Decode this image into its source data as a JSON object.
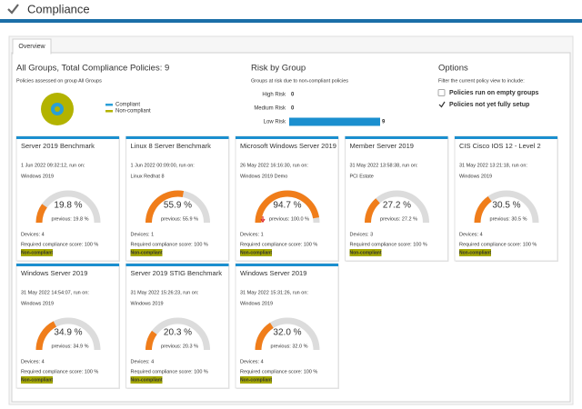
{
  "header": {
    "title": "Compliance"
  },
  "tab": "Overview",
  "gauge_range": [
    0,
    100
  ],
  "summary": {
    "title": "All Groups, Total Compliance Policies: 9",
    "subtitle": "Policies assessed on group All Groups",
    "legend": [
      {
        "name": "Compliant",
        "color": "#2a9fd8"
      },
      {
        "name": "Non-compliant",
        "color": "#b3b300"
      }
    ]
  },
  "risk": {
    "title": "Risk by Group",
    "subtitle": "Groups at risk due to non-compliant policies",
    "color": "#1b8fcf",
    "rows": [
      {
        "label": "High Risk",
        "value": 0
      },
      {
        "label": "Medium Risk",
        "value": 0
      },
      {
        "label": "Low Risk",
        "value": 9
      }
    ]
  },
  "options": {
    "title": "Options",
    "subtitle": "Filter the current policy view to include:",
    "items": [
      {
        "label": "Policies run on empty groups",
        "checked": false
      },
      {
        "label": "Policies not yet fully setup",
        "checked": true
      }
    ]
  },
  "cards": [
    {
      "title": "Server 2019 Benchmark",
      "date": "1 Jun 2022 09:32:12, run on:",
      "platform": "Windows 2019",
      "value": 19.8,
      "value_label": "19.8 %",
      "previous": "previous: 19.8 %",
      "devices": "Devices: 4",
      "required": "Required compliance score: 100 %",
      "status": "Non-compliant"
    },
    {
      "title": "Linux 8 Server Benchmark",
      "date": "1 Jun 2022 00:09:00, run on:",
      "platform": "Linux Redhat 8",
      "value": 55.9,
      "value_label": "55.9 %",
      "previous": "previous: 55.9 %",
      "devices": "Devices: 1",
      "required": "Required compliance score: 100 %",
      "status": "Non-compliant"
    },
    {
      "title": "Microsoft Windows Server 2019",
      "date": "26 May 2022 16:16:30, run on:",
      "platform": "Windows 2019 Demo",
      "value": 94.7,
      "value_label": "94.7 %",
      "previous": "previous: 100.0 %",
      "trend": "down",
      "devices": "Devices: 1",
      "required": "Required compliance score: 100 %",
      "status": "Non-compliant"
    },
    {
      "title": "Member Server 2019",
      "date": "31 May 2022 13:58:38, run on:",
      "platform": "PCI Estate",
      "value": 27.2,
      "value_label": "27.2 %",
      "previous": "previous: 27.2 %",
      "devices": "Devices: 3",
      "required": "Required compliance score: 100 %",
      "status": "Non-compliant"
    },
    {
      "title": "CIS Cisco IOS 12 - Level 2",
      "date": "31 May 2022 13:21:18, run on:",
      "platform": "Windows 2019",
      "value": 30.5,
      "value_label": "30.5 %",
      "previous": "previous: 30.5 %",
      "devices": "Devices: 4",
      "required": "Required compliance score: 100 %",
      "status": "Non-compliant"
    },
    {
      "title": "Windows Server 2019",
      "date": "31 May 2022 14:54:07, run on:",
      "platform": "Windows 2019",
      "value": 34.9,
      "value_label": "34.9 %",
      "previous": "previous: 34.9 %",
      "devices": "Devices: 4",
      "required": "Required compliance score: 100 %",
      "status": "Non-compliant"
    },
    {
      "title": "Server 2019 STIG Benchmark",
      "date": "31 May 2022 15:26:23, run on:",
      "platform": "Windows 2019",
      "value": 20.3,
      "value_label": "20.3 %",
      "previous": "previous: 20.3 %",
      "devices": "Devices: 4",
      "required": "Required compliance score: 100 %",
      "status": "Non-compliant"
    },
    {
      "title": "Windows Server 2019",
      "date": "31 May 2022 15:31:26, run on:",
      "platform": "Windows 2019",
      "value": 32,
      "value_label": "32.0 %",
      "previous": "previous: 32.0 %",
      "devices": "Devices: 4",
      "required": "Required compliance score: 100 %",
      "status": "Non-compliant"
    }
  ]
}
